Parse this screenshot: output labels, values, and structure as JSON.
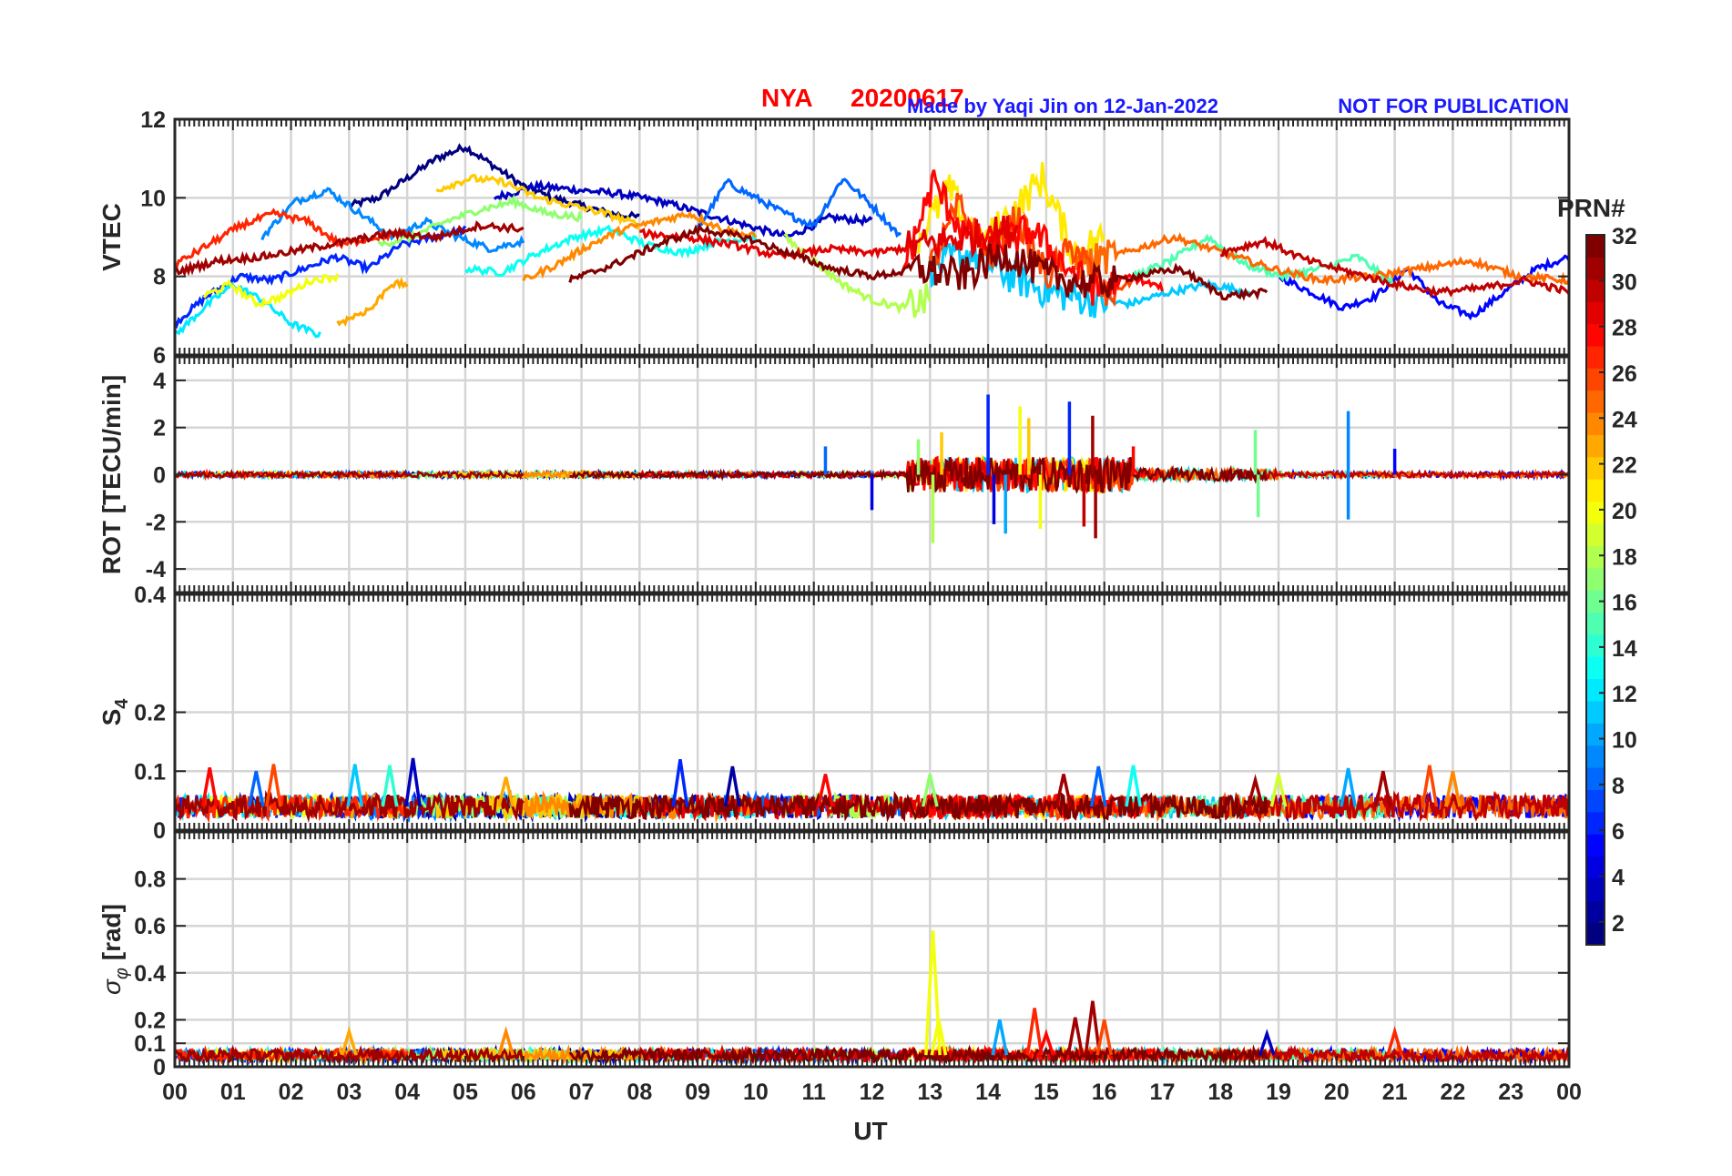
{
  "header": {
    "station": "NYA",
    "date": "20200617",
    "credit": "Made by Yaqi Jin on 12-Jan-2022",
    "notice": "NOT FOR PUBLICATION",
    "colors": {
      "title": "#ff0000",
      "credit": "#1a1aff",
      "notice": "#1a1aff"
    }
  },
  "chart_data": {
    "type": "line",
    "xlabel": "UT",
    "x_range_hours": [
      0,
      24
    ],
    "x_tick_labels": [
      "00",
      "01",
      "02",
      "03",
      "04",
      "05",
      "06",
      "07",
      "08",
      "09",
      "10",
      "11",
      "12",
      "13",
      "14",
      "15",
      "16",
      "17",
      "18",
      "19",
      "20",
      "21",
      "22",
      "23",
      "00"
    ],
    "grid": true,
    "colorbar": {
      "label": "PRN#",
      "colormap": "jet",
      "range": [
        1,
        32
      ],
      "tick_labels": [
        "2",
        "4",
        "6",
        "8",
        "10",
        "12",
        "14",
        "16",
        "18",
        "20",
        "22",
        "24",
        "26",
        "28",
        "30",
        "32"
      ]
    },
    "panels": [
      {
        "name": "vtec",
        "ylabel": "VTEC",
        "ylim": [
          6,
          12
        ],
        "y_tick_labels": [
          "6",
          "8",
          "10",
          "12"
        ]
      },
      {
        "name": "rot",
        "ylabel": "ROT [TECU/min]",
        "ylim": [
          -5,
          5
        ],
        "y_tick_labels": [
          "-4",
          "-2",
          "0",
          "2",
          "4"
        ]
      },
      {
        "name": "s4",
        "ylabel": "S4",
        "ylim": [
          0,
          0.4
        ],
        "y_tick_labels": [
          "0",
          "0.1",
          "0.2",
          "0.4"
        ]
      },
      {
        "name": "sigma_phi",
        "ylabel": "σφ [rad]",
        "ylim": [
          0,
          1
        ],
        "y_tick_labels": [
          "0",
          "0.1",
          "0.2",
          "0.4",
          "0.6",
          "0.8"
        ]
      }
    ],
    "vtec_series": [
      {
        "prn": 1,
        "start": 3.0,
        "end": 8.0,
        "values": [
          9.8,
          10.0,
          10.5,
          11.0,
          11.3,
          10.8,
          10.3,
          10.0,
          9.8,
          9.6,
          9.5
        ]
      },
      {
        "prn": 3,
        "start": 5.5,
        "end": 12.0,
        "values": [
          10.0,
          10.3,
          10.2,
          10.1,
          9.9,
          9.6,
          9.3,
          9.0,
          9.5,
          9.4
        ]
      },
      {
        "prn": 5,
        "start": 19.0,
        "end": 24.0,
        "values": [
          8.0,
          7.6,
          7.2,
          7.5,
          8.2,
          7.3,
          7.0,
          7.6,
          8.2,
          8.5
        ]
      },
      {
        "prn": 6,
        "start": 0.0,
        "end": 5.0,
        "values": [
          6.8,
          7.5,
          8.0,
          7.9,
          8.2,
          8.5,
          8.2,
          8.8,
          9.0,
          9.2
        ]
      },
      {
        "prn": 8,
        "start": 9.0,
        "end": 12.5,
        "values": [
          9.2,
          10.4,
          10.0,
          9.6,
          9.3,
          10.5,
          9.8,
          9.0
        ]
      },
      {
        "prn": 9,
        "start": 1.5,
        "end": 6.0,
        "values": [
          9.0,
          9.9,
          10.2,
          9.6,
          9.0,
          9.4,
          9.0,
          8.7,
          8.9
        ]
      },
      {
        "prn": 11,
        "start": 13.0,
        "end": 18.5,
        "values": [
          8.2,
          8.6,
          8.0,
          7.6,
          7.4,
          7.3,
          7.6,
          7.8,
          7.6
        ]
      },
      {
        "prn": 12,
        "start": 0.0,
        "end": 2.5,
        "values": [
          6.5,
          7.2,
          7.8,
          7.4,
          6.8,
          6.5
        ]
      },
      {
        "prn": 13,
        "start": 5.0,
        "end": 10.0,
        "values": [
          8.2,
          8.1,
          8.6,
          9.0,
          9.2,
          8.8,
          8.6,
          8.9,
          9.0
        ]
      },
      {
        "prn": 15,
        "start": 16.5,
        "end": 21.0,
        "values": [
          8.0,
          8.4,
          9.0,
          8.3,
          8.0,
          8.2,
          8.5,
          7.8
        ]
      },
      {
        "prn": 17,
        "start": 3.5,
        "end": 7.0,
        "values": [
          8.8,
          9.0,
          9.4,
          9.7,
          9.9,
          9.6,
          9.5
        ]
      },
      {
        "prn": 18,
        "start": 10.5,
        "end": 13.0,
        "values": [
          9.0,
          8.4,
          7.8,
          7.4,
          7.2,
          7.4
        ]
      },
      {
        "prn": 20,
        "start": 0.5,
        "end": 2.8,
        "values": [
          7.5,
          7.8,
          7.3,
          7.5,
          7.9,
          8.0
        ]
      },
      {
        "prn": 21,
        "start": 12.8,
        "end": 16.0,
        "values": [
          9.0,
          10.2,
          8.8,
          9.6,
          10.5,
          8.6,
          9.0
        ]
      },
      {
        "prn": 22,
        "start": 4.5,
        "end": 8.0,
        "values": [
          10.2,
          10.5,
          10.4,
          10.0,
          9.8,
          9.6,
          9.3
        ]
      },
      {
        "prn": 23,
        "start": 2.8,
        "end": 4.0,
        "values": [
          6.8,
          7.0,
          7.2,
          7.8,
          7.8
        ]
      },
      {
        "prn": 24,
        "start": 6.0,
        "end": 10.0,
        "values": [
          7.9,
          8.3,
          8.8,
          9.2,
          9.4,
          9.6,
          9.2,
          9.0
        ]
      },
      {
        "prn": 25,
        "start": 15.5,
        "end": 24.0,
        "values": [
          8.3,
          8.6,
          9.0,
          8.6,
          8.2,
          7.9,
          8.0,
          8.2,
          8.4,
          8.0,
          7.9
        ]
      },
      {
        "prn": 26,
        "start": 13.0,
        "end": 16.5,
        "values": [
          8.2,
          9.8,
          8.5,
          9.5,
          8.0,
          8.8,
          7.5,
          7.9
        ]
      },
      {
        "prn": 27,
        "start": 0.0,
        "end": 4.0,
        "values": [
          8.3,
          8.8,
          9.3,
          9.6,
          9.4,
          8.8,
          9.0,
          9.1
        ]
      },
      {
        "prn": 28,
        "start": 12.5,
        "end": 17.0,
        "values": [
          8.0,
          10.4,
          9.0,
          8.8,
          9.2,
          8.3,
          7.6,
          8.0,
          7.7
        ]
      },
      {
        "prn": 29,
        "start": 8.0,
        "end": 14.5,
        "values": [
          9.1,
          9.0,
          8.8,
          8.5,
          8.7,
          8.6,
          8.8,
          9.0,
          9.2
        ]
      },
      {
        "prn": 30,
        "start": 18.0,
        "end": 24.0,
        "values": [
          8.6,
          8.9,
          8.4,
          8.1,
          7.8,
          7.6,
          7.7,
          7.9,
          7.6
        ]
      },
      {
        "prn": 31,
        "start": 0.0,
        "end": 6.0,
        "values": [
          8.1,
          8.4,
          8.5,
          8.7,
          8.9,
          9.1,
          9.0,
          9.3,
          9.2
        ]
      },
      {
        "prn": 32,
        "start": 6.8,
        "end": 18.8,
        "values": [
          7.9,
          8.3,
          8.8,
          9.2,
          9.0,
          8.6,
          8.2,
          8.0,
          8.2,
          8.0,
          8.6,
          8.0,
          7.8,
          8.0,
          8.2,
          7.5,
          7.6
        ]
      }
    ],
    "rot_peaks": [
      {
        "ut": 11.2,
        "value": 1.2,
        "prn": 8
      },
      {
        "ut": 12.0,
        "value": -1.5,
        "prn": 4
      },
      {
        "ut": 12.8,
        "value": 1.5,
        "prn": 17
      },
      {
        "ut": 13.05,
        "value": -2.9,
        "prn": 18
      },
      {
        "ut": 13.2,
        "value": 1.8,
        "prn": 22
      },
      {
        "ut": 14.0,
        "value": 3.4,
        "prn": 6
      },
      {
        "ut": 14.1,
        "value": -2.1,
        "prn": 4
      },
      {
        "ut": 14.3,
        "value": -2.5,
        "prn": 10
      },
      {
        "ut": 14.55,
        "value": 2.9,
        "prn": 20
      },
      {
        "ut": 14.7,
        "value": 2.4,
        "prn": 22
      },
      {
        "ut": 14.9,
        "value": -2.3,
        "prn": 20
      },
      {
        "ut": 15.4,
        "value": 3.1,
        "prn": 6
      },
      {
        "ut": 15.65,
        "value": -2.2,
        "prn": 30
      },
      {
        "ut": 15.8,
        "value": 2.5,
        "prn": 31
      },
      {
        "ut": 15.85,
        "value": -2.7,
        "prn": 31
      },
      {
        "ut": 16.5,
        "value": 1.2,
        "prn": 28
      },
      {
        "ut": 18.6,
        "value": 1.9,
        "prn": 16
      },
      {
        "ut": 18.65,
        "value": -1.8,
        "prn": 16
      },
      {
        "ut": 20.2,
        "value": 2.7,
        "prn": 9
      },
      {
        "ut": 20.2,
        "value": -1.9,
        "prn": 9
      },
      {
        "ut": 21.0,
        "value": 1.1,
        "prn": 5
      }
    ],
    "s4_peaks": [
      {
        "ut": 0.6,
        "value": 0.106,
        "prn": 28
      },
      {
        "ut": 1.4,
        "value": 0.1,
        "prn": 8
      },
      {
        "ut": 1.7,
        "value": 0.112,
        "prn": 26
      },
      {
        "ut": 3.1,
        "value": 0.112,
        "prn": 11
      },
      {
        "ut": 3.7,
        "value": 0.11,
        "prn": 14
      },
      {
        "ut": 4.1,
        "value": 0.122,
        "prn": 3
      },
      {
        "ut": 5.7,
        "value": 0.09,
        "prn": 23
      },
      {
        "ut": 8.7,
        "value": 0.12,
        "prn": 6
      },
      {
        "ut": 9.6,
        "value": 0.108,
        "prn": 2
      },
      {
        "ut": 11.2,
        "value": 0.095,
        "prn": 28
      },
      {
        "ut": 13.0,
        "value": 0.095,
        "prn": 17
      },
      {
        "ut": 15.3,
        "value": 0.095,
        "prn": 31
      },
      {
        "ut": 15.9,
        "value": 0.108,
        "prn": 8
      },
      {
        "ut": 16.5,
        "value": 0.11,
        "prn": 13
      },
      {
        "ut": 18.6,
        "value": 0.085,
        "prn": 31
      },
      {
        "ut": 19.0,
        "value": 0.095,
        "prn": 19
      },
      {
        "ut": 20.2,
        "value": 0.105,
        "prn": 10
      },
      {
        "ut": 20.8,
        "value": 0.1,
        "prn": 31
      },
      {
        "ut": 21.6,
        "value": 0.11,
        "prn": 26
      },
      {
        "ut": 22.0,
        "value": 0.1,
        "prn": 24
      }
    ],
    "sigma_phi_peaks": [
      {
        "ut": 3.0,
        "value": 0.15,
        "prn": 23
      },
      {
        "ut": 5.7,
        "value": 0.15,
        "prn": 24
      },
      {
        "ut": 13.05,
        "value": 0.58,
        "prn": 20
      },
      {
        "ut": 13.15,
        "value": 0.2,
        "prn": 20
      },
      {
        "ut": 14.2,
        "value": 0.2,
        "prn": 10
      },
      {
        "ut": 14.8,
        "value": 0.25,
        "prn": 27
      },
      {
        "ut": 15.0,
        "value": 0.14,
        "prn": 28
      },
      {
        "ut": 15.5,
        "value": 0.21,
        "prn": 31
      },
      {
        "ut": 15.8,
        "value": 0.28,
        "prn": 31
      },
      {
        "ut": 16.0,
        "value": 0.2,
        "prn": 26
      },
      {
        "ut": 18.8,
        "value": 0.14,
        "prn": 3
      },
      {
        "ut": 21.0,
        "value": 0.15,
        "prn": 27
      }
    ]
  }
}
